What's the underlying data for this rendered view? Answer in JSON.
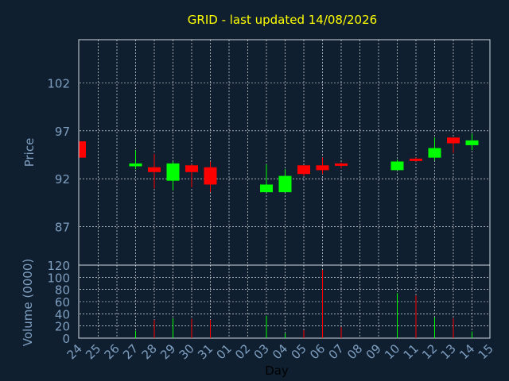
{
  "chart_data": [
    {
      "type": "candlestick",
      "title": "GRID - last updated 14/08/2026",
      "ylabel": "Price",
      "ylim": [
        83,
        106.5
      ],
      "yticks": [
        87,
        92,
        97,
        102
      ],
      "x": [
        "24",
        "25",
        "26",
        "27",
        "28",
        "29",
        "30",
        "31",
        "01",
        "02",
        "03",
        "04",
        "05",
        "06",
        "07",
        "08",
        "09",
        "10",
        "11",
        "12",
        "13",
        "14",
        "15"
      ],
      "series": [
        {
          "values": [
            {
              "day": "24",
              "open": 95.9,
              "high": 95.9,
              "low": 94.2,
              "close": 94.2
            },
            {
              "day": "27",
              "open": 93.3,
              "high": 95.0,
              "low": 93.0,
              "close": 93.6
            },
            {
              "day": "28",
              "open": 93.2,
              "high": 94.6,
              "low": 91.0,
              "close": 92.7
            },
            {
              "day": "29",
              "open": 91.8,
              "high": 93.8,
              "low": 90.8,
              "close": 93.6
            },
            {
              "day": "30",
              "open": 93.4,
              "high": 93.5,
              "low": 91.1,
              "close": 92.7
            },
            {
              "day": "31",
              "open": 93.2,
              "high": 93.8,
              "low": 90.6,
              "close": 91.4
            },
            {
              "day": "03",
              "open": 90.6,
              "high": 93.5,
              "low": 90.6,
              "close": 91.4
            },
            {
              "day": "04",
              "open": 90.6,
              "high": 93.0,
              "low": 90.6,
              "close": 92.3
            },
            {
              "day": "05",
              "open": 93.4,
              "high": 93.4,
              "low": 92.3,
              "close": 92.5
            },
            {
              "day": "06",
              "open": 93.4,
              "high": 94.2,
              "low": 92.5,
              "close": 92.9
            },
            {
              "day": "07",
              "open": 93.6,
              "high": 93.7,
              "low": 93.1,
              "close": 93.4
            },
            {
              "day": "10",
              "open": 92.9,
              "high": 94.0,
              "low": 92.9,
              "close": 93.8
            },
            {
              "day": "11",
              "open": 94.1,
              "high": 94.2,
              "low": 93.8,
              "close": 93.9
            },
            {
              "day": "12",
              "open": 94.2,
              "high": 96.3,
              "low": 93.9,
              "close": 95.2
            },
            {
              "day": "13",
              "open": 96.3,
              "high": 96.3,
              "low": 94.7,
              "close": 95.7
            },
            {
              "day": "14",
              "open": 95.5,
              "high": 96.7,
              "low": 95.0,
              "close": 96.0
            }
          ]
        }
      ],
      "colors": {
        "up": "#00ff00",
        "down": "#ff0000"
      },
      "grid": true
    },
    {
      "type": "bar",
      "ylabel": "Volume (0000)",
      "xlabel": "Day",
      "ylim": [
        0,
        120
      ],
      "yticks": [
        0,
        20,
        40,
        60,
        80,
        100,
        120
      ],
      "x": [
        "24",
        "25",
        "26",
        "27",
        "28",
        "29",
        "30",
        "31",
        "01",
        "02",
        "03",
        "04",
        "05",
        "06",
        "07",
        "08",
        "09",
        "10",
        "11",
        "12",
        "13",
        "14",
        "15"
      ],
      "values": [
        {
          "day": "27",
          "value": 12,
          "dir": "up"
        },
        {
          "day": "28",
          "value": 30,
          "dir": "down"
        },
        {
          "day": "29",
          "value": 33,
          "dir": "up"
        },
        {
          "day": "30",
          "value": 32,
          "dir": "down"
        },
        {
          "day": "31",
          "value": 30,
          "dir": "down"
        },
        {
          "day": "03",
          "value": 37,
          "dir": "up"
        },
        {
          "day": "04",
          "value": 8,
          "dir": "up"
        },
        {
          "day": "05",
          "value": 13,
          "dir": "down"
        },
        {
          "day": "06",
          "value": 112,
          "dir": "down"
        },
        {
          "day": "07",
          "value": 18,
          "dir": "down"
        },
        {
          "day": "10",
          "value": 74,
          "dir": "up"
        },
        {
          "day": "11",
          "value": 70,
          "dir": "down"
        },
        {
          "day": "12",
          "value": 34,
          "dir": "up"
        },
        {
          "day": "13",
          "value": 33,
          "dir": "down"
        },
        {
          "day": "14",
          "value": 11,
          "dir": "up"
        }
      ],
      "grid": true
    }
  ],
  "colors": {
    "background": "#0f1f30",
    "title": "#ffff00",
    "axis_text": "#7f9fc0",
    "grid": "#ffffff"
  }
}
